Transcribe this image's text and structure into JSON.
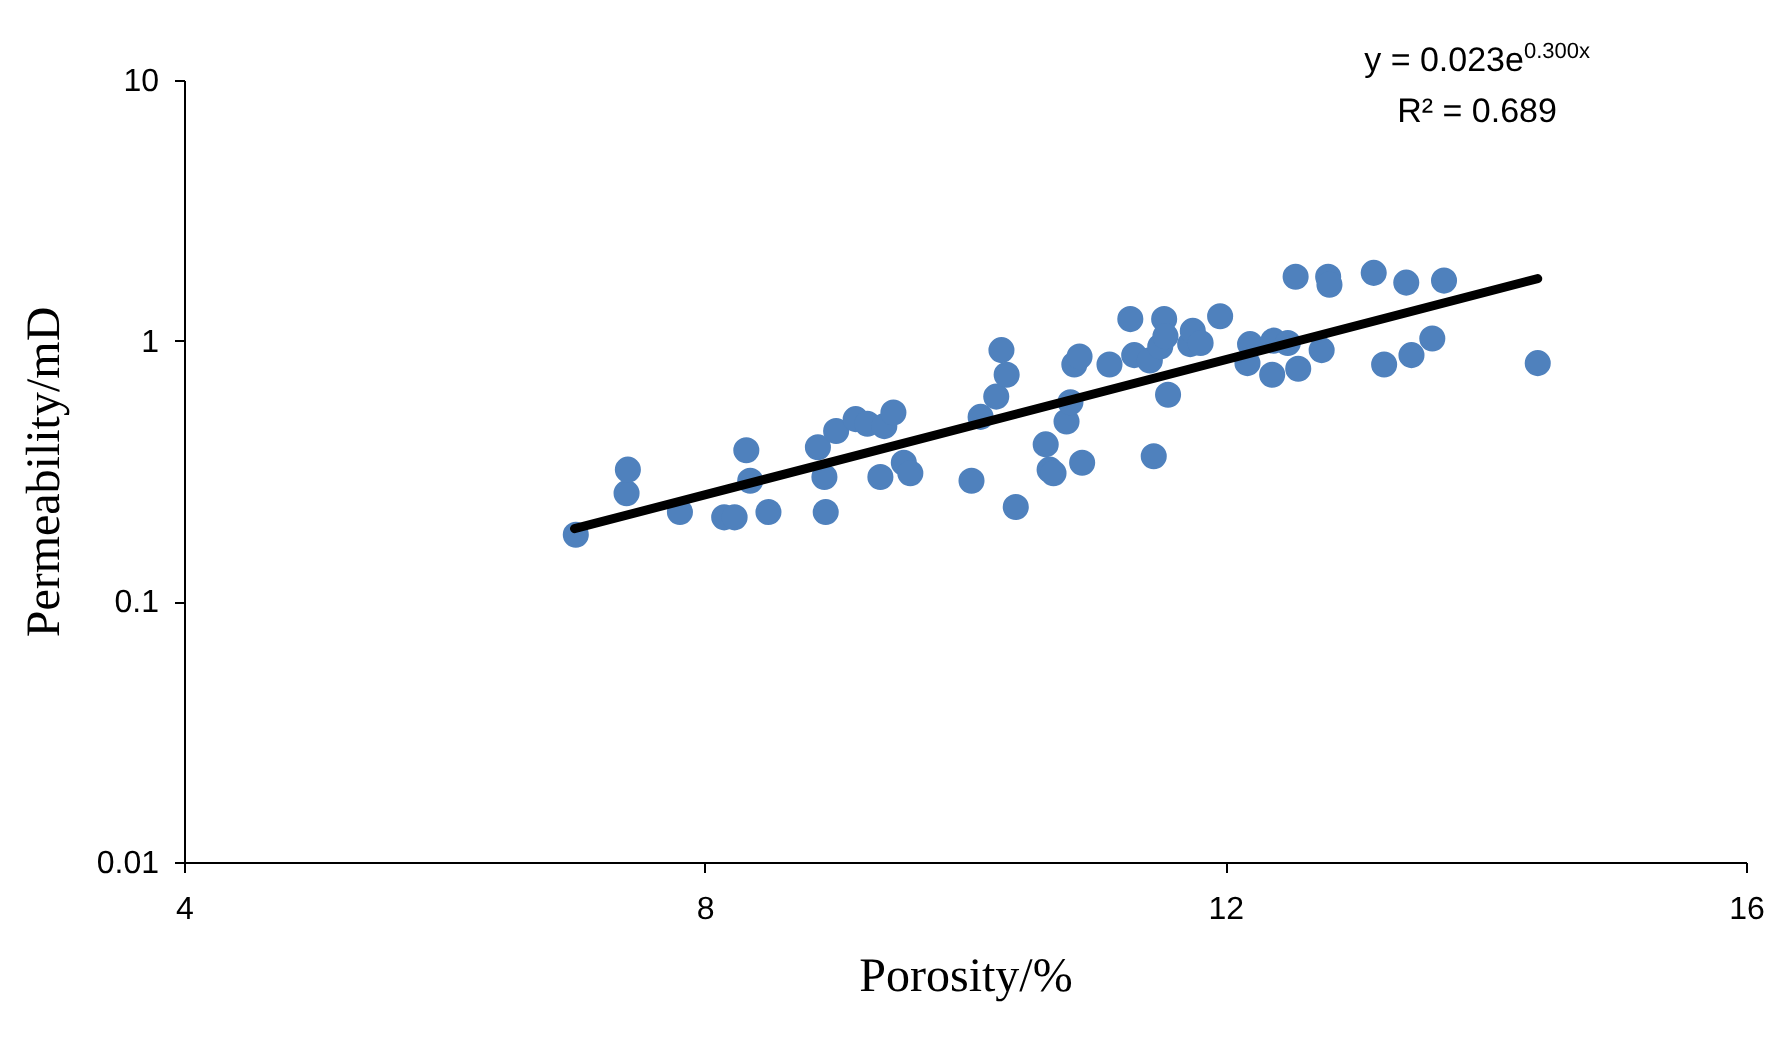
{
  "chart_data": {
    "type": "scatter",
    "xlabel": "Porosity/%",
    "ylabel": "Permeability/mD",
    "log": "y",
    "xlim": [
      4,
      16
    ],
    "xticks": [
      4,
      8,
      12,
      16
    ],
    "ylim": [
      0.01,
      10
    ],
    "yticks": [
      0.01,
      0.1,
      1,
      10
    ],
    "grid": false,
    "annotations": [
      "y = 0.023e$^{0.300x}$",
      "R² = 0.689"
    ],
    "series": [
      {
        "marker": "circle",
        "color": "#4f81bd",
        "x": [
          7.01,
          7.4,
          7.41,
          7.81,
          8.15,
          8.23,
          8.32,
          8.35,
          8.49,
          8.87,
          8.92,
          8.93,
          9.01,
          9.16,
          9.25,
          9.35,
          9.38,
          9.45,
          9.53,
          9.58,
          10.05,
          10.12,
          10.24,
          10.28,
          10.32,
          10.39,
          10.62,
          10.65,
          10.68,
          10.78,
          10.81,
          10.84,
          10.88,
          10.9,
          11.11,
          11.27,
          11.3,
          11.42,
          11.45,
          11.5,
          11.53,
          11.54,
          11.56,
          11.73,
          11.75,
          11.81,
          11.96,
          12.17,
          12.19,
          12.36,
          12.37,
          12.48,
          12.54,
          12.56,
          12.74,
          12.79,
          12.8,
          13.14,
          13.22,
          13.39,
          13.43,
          13.59,
          13.68,
          14.4
        ],
        "values": [
          0.18,
          0.26,
          0.32,
          0.22,
          0.21,
          0.21,
          0.38,
          0.29,
          0.22,
          0.39,
          0.3,
          0.22,
          0.45,
          0.5,
          0.48,
          0.3,
          0.47,
          0.53,
          0.34,
          0.31,
          0.29,
          0.51,
          0.61,
          0.92,
          0.74,
          0.23,
          0.4,
          0.32,
          0.31,
          0.49,
          0.58,
          0.81,
          0.87,
          0.34,
          0.81,
          1.21,
          0.88,
          0.84,
          0.36,
          0.95,
          1.21,
          1.04,
          0.62,
          0.97,
          1.09,
          0.98,
          1.24,
          0.82,
          0.97,
          0.74,
          1.0,
          0.98,
          1.76,
          0.78,
          0.92,
          1.76,
          1.64,
          1.82,
          0.81,
          1.67,
          0.88,
          1.02,
          1.7,
          0.82
        ]
      },
      {
        "type": "line",
        "marker": "none",
        "color": "#000000",
        "x": [
          7.0,
          14.4
        ],
        "values": [
          0.19,
          1.73
        ]
      }
    ]
  }
}
